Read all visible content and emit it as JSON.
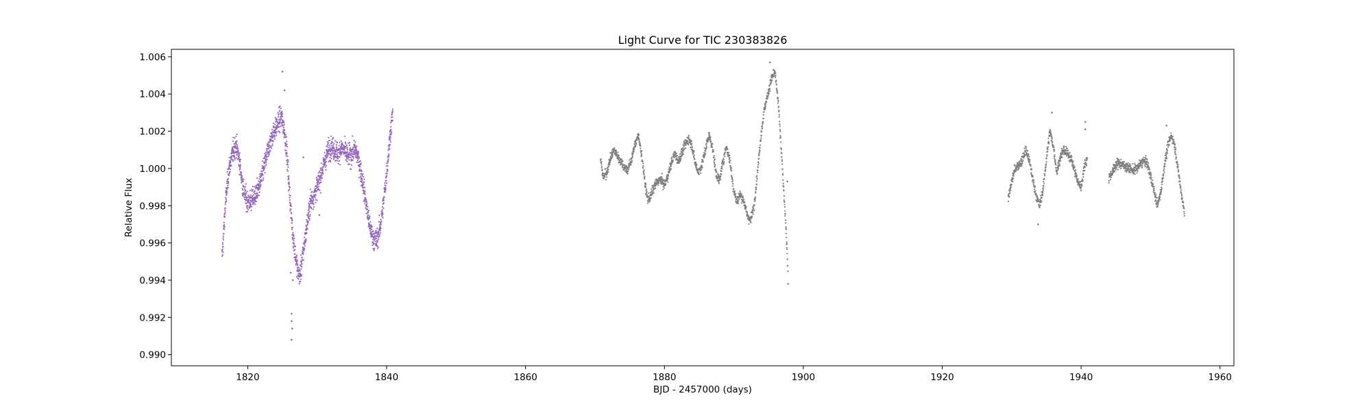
{
  "chart_data": {
    "type": "scatter",
    "title": "Light Curve for TIC 230383826",
    "xlabel": "BJD - 2457000 (days)",
    "ylabel": "Relative Flux",
    "xlim": [
      1809,
      1962
    ],
    "ylim": [
      0.9894,
      1.0064
    ],
    "xticks": [
      1820,
      1840,
      1860,
      1880,
      1900,
      1920,
      1940,
      1960
    ],
    "yticks": [
      0.99,
      0.992,
      0.994,
      0.996,
      0.998,
      1.0,
      1.002,
      1.004,
      1.006
    ],
    "xtick_labels": [
      "1820",
      "1840",
      "1860",
      "1880",
      "1900",
      "1920",
      "1940",
      "1960"
    ],
    "ytick_labels": [
      "0.990",
      "0.992",
      "0.994",
      "0.996",
      "0.998",
      "1.000",
      "1.002",
      "1.004",
      "1.006"
    ],
    "grid": false,
    "series": [
      {
        "color": "#9467bd",
        "scatter": 0.0009,
        "density": 7,
        "x": [
          1816.3,
          1816.8,
          1817.3,
          1817.8,
          1818.3,
          1818.8,
          1819.3,
          1819.8,
          1820.3,
          1820.8,
          1821.3,
          1821.8,
          1822.3,
          1822.8,
          1823.3,
          1823.8,
          1824.3,
          1824.8,
          1825.2,
          1825.6,
          1826.0,
          1826.4,
          1826.8,
          1827.2,
          1827.5,
          1829.0,
          1829.5,
          1830.0,
          1830.5,
          1831.0,
          1831.5,
          1832.0,
          1832.5,
          1833.0,
          1833.5,
          1834.0,
          1834.5,
          1835.0,
          1835.5,
          1836.0,
          1836.5,
          1837.0,
          1837.5,
          1838.0,
          1838.5,
          1839.0,
          1839.5,
          1840.0,
          1840.5,
          1840.9
        ],
        "y": [
          0.9952,
          0.9982,
          1.0,
          1.0008,
          1.0013,
          1.0004,
          0.999,
          0.9983,
          0.9982,
          0.9984,
          0.9987,
          0.9992,
          1.0,
          1.0008,
          1.0015,
          1.002,
          1.0024,
          1.0028,
          1.0022,
          1.001,
          0.9988,
          0.9968,
          0.9955,
          0.9945,
          0.9942,
          0.9982,
          0.9985,
          0.999,
          0.9996,
          1.0003,
          1.0009,
          1.0012,
          1.001,
          1.0008,
          1.0011,
          1.0009,
          1.0006,
          1.0008,
          1.001,
          1.0004,
          0.9994,
          0.9982,
          0.997,
          0.9963,
          0.9961,
          0.9967,
          0.998,
          0.9998,
          1.0018,
          1.003
        ]
      },
      {
        "color": "#7f7f7f",
        "scatter": 0.0004,
        "density": 5,
        "x": [
          1870.8,
          1871.2,
          1871.7,
          1872.2,
          1872.7,
          1873.2,
          1873.7,
          1874.2,
          1874.7,
          1875.2,
          1875.7,
          1876.2,
          1876.7,
          1877.2,
          1877.6,
          1878.0,
          1878.5,
          1879.0,
          1879.5,
          1880.0,
          1880.5,
          1881.0,
          1881.5,
          1882.0,
          1882.5,
          1883.0,
          1883.5,
          1884.0,
          1884.4,
          1884.9,
          1885.4,
          1885.9,
          1886.4,
          1886.9,
          1887.4,
          1887.9,
          1888.4,
          1888.9,
          1889.4,
          1889.9,
          1890.4,
          1890.9,
          1891.4,
          1891.9,
          1892.4,
          1892.9,
          1893.4,
          1893.9,
          1894.4,
          1894.9,
          1895.4,
          1895.9,
          1896.4,
          1896.9,
          1897.4,
          1897.8
        ],
        "y": [
          1.0005,
          0.9995,
          0.9998,
          1.0005,
          1.001,
          1.0007,
          1.0004,
          1.0001,
          0.9999,
          1.0004,
          1.0012,
          1.0018,
          1.0008,
          0.9992,
          0.9983,
          0.9985,
          0.999,
          0.9993,
          0.9994,
          0.9991,
          0.9996,
          1.0003,
          1.0008,
          1.0004,
          1.0008,
          1.0013,
          1.0016,
          1.0012,
          1.0003,
          0.9998,
          1.0002,
          1.001,
          1.0018,
          1.0012,
          0.9998,
          0.9993,
          1.0003,
          1.0012,
          1.0005,
          0.999,
          0.9982,
          0.9986,
          0.9983,
          0.9975,
          0.9972,
          0.998,
          0.9998,
          1.0018,
          1.0032,
          1.004,
          1.0048,
          1.0052,
          1.0035,
          1.0005,
          0.9975,
          0.9945
        ]
      },
      {
        "color": "#7f7f7f",
        "scatter": 0.0004,
        "density": 5,
        "x": [
          1929.5,
          1930.0,
          1930.5,
          1931.0,
          1931.5,
          1932.0,
          1932.5,
          1933.0,
          1933.5,
          1934.0,
          1934.5,
          1935.0,
          1935.5,
          1936.0,
          1936.5,
          1937.0,
          1937.5,
          1938.0,
          1938.5,
          1939.0,
          1939.5,
          1940.0,
          1940.5,
          1940.9
        ],
        "y": [
          0.9983,
          0.9993,
          1.0,
          1.0002,
          1.0004,
          1.001,
          1.0005,
          0.9995,
          0.9986,
          0.998,
          0.9988,
          1.0005,
          1.002,
          1.0012,
          0.9998,
          1.0006,
          1.001,
          1.0008,
          1.0006,
          1.0,
          0.9993,
          0.999,
          1.0002,
          1.0005
        ]
      },
      {
        "color": "#7f7f7f",
        "scatter": 0.0004,
        "density": 5,
        "x": [
          1944.0,
          1944.5,
          1945.0,
          1945.5,
          1946.0,
          1946.5,
          1947.0,
          1947.5,
          1948.0,
          1948.5,
          1949.0,
          1949.5,
          1950.0,
          1950.5,
          1951.0,
          1951.5,
          1952.0,
          1952.5,
          1953.0,
          1953.5,
          1954.0,
          1954.5,
          1954.9
        ],
        "y": [
          0.9995,
          0.9998,
          1.0002,
          1.0003,
          1.0002,
          1.0001,
          1.0,
          0.9999,
          1.0,
          1.0002,
          1.0004,
          1.0003,
          0.9996,
          0.9988,
          0.998,
          0.9988,
          1.0002,
          1.0012,
          1.0018,
          1.0012,
          0.9998,
          0.9985,
          0.9976
        ]
      }
    ],
    "outliers": [
      {
        "x": 1825.0,
        "y": 1.0052,
        "color": "#9467bd"
      },
      {
        "x": 1825.3,
        "y": 1.0042,
        "color": "#9467bd"
      },
      {
        "x": 1828.0,
        "y": 1.0006,
        "color": "#9467bd"
      },
      {
        "x": 1830.3,
        "y": 0.9975,
        "color": "#9467bd"
      },
      {
        "x": 1826.3,
        "y": 0.9922,
        "color": "#9467bd"
      },
      {
        "x": 1826.3,
        "y": 0.9918,
        "color": "#9467bd"
      },
      {
        "x": 1826.4,
        "y": 0.9914,
        "color": "#9467bd"
      },
      {
        "x": 1826.3,
        "y": 0.9908,
        "color": "#9467bd"
      },
      {
        "x": 1826.2,
        "y": 0.9944,
        "color": "#9467bd"
      },
      {
        "x": 1826.5,
        "y": 0.994,
        "color": "#9467bd"
      },
      {
        "x": 1895.2,
        "y": 1.0057,
        "color": "#7f7f7f"
      },
      {
        "x": 1897.7,
        "y": 0.9993,
        "color": "#7f7f7f"
      },
      {
        "x": 1897.8,
        "y": 0.9938,
        "color": "#7f7f7f"
      },
      {
        "x": 1940.6,
        "y": 1.0025,
        "color": "#7f7f7f"
      },
      {
        "x": 1940.6,
        "y": 1.0021,
        "color": "#7f7f7f"
      },
      {
        "x": 1935.8,
        "y": 1.003,
        "color": "#7f7f7f"
      },
      {
        "x": 1952.3,
        "y": 1.0023,
        "color": "#7f7f7f"
      },
      {
        "x": 1933.8,
        "y": 0.997,
        "color": "#7f7f7f"
      }
    ]
  }
}
